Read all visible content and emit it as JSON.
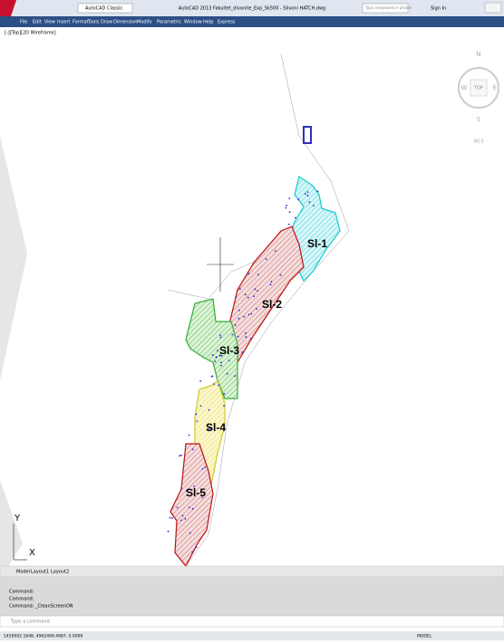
{
  "title_bar": {
    "workspace": "AutoCAD Classic",
    "title": "AutoCAD 2013  Fakultet_divonite_Exp_Sk500 - Slivoni HATCH.dwg",
    "search": "Type a keyword or phrase",
    "sign_in": "Sign In"
  },
  "menu": [
    "File",
    "Edit",
    "View",
    "Insert",
    "Format",
    "Tools",
    "Draw",
    "Dimension",
    "Modify",
    "Parametric",
    "Window",
    "Help",
    "Express"
  ],
  "viewport": {
    "label": "[-][Top][2D Wireframe]",
    "viewcube": {
      "north": "N",
      "west": "W",
      "top": "TOP",
      "east": "E",
      "south": "S",
      "wcs": "WCS"
    },
    "zones": [
      "Sl-1",
      "Sl-2",
      "Sl-3",
      "Sl-4",
      "Sl-5"
    ],
    "ucs": {
      "y": "Y",
      "x": "X"
    }
  },
  "tabs": [
    "Model",
    "Layout1",
    "Layout2"
  ],
  "command": {
    "history": [
      "Command:",
      "Command:",
      "Command: _CleanScreenON"
    ],
    "prompt": "Type a command"
  },
  "status": {
    "coordinates": "1459002.1648, 4962499.4987, 0.0000",
    "model": "MODEL"
  }
}
